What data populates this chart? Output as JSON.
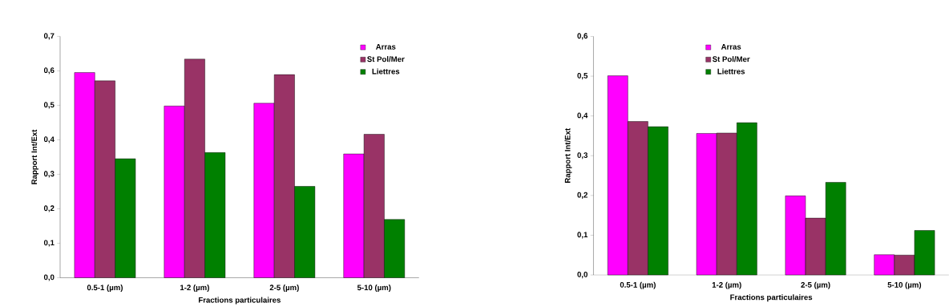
{
  "chart_data": [
    {
      "type": "bar",
      "xlabel": "Fractions particulaires",
      "ylabel": "Rapport Int/Ext",
      "categories": [
        "0.5-1 (µm)",
        "1-2 (µm)",
        "2-5 (µm)",
        "5-10 (µm)"
      ],
      "series": [
        {
          "name": "Arras",
          "color": "#ff00ff",
          "values": [
            0.595,
            0.498,
            0.506,
            0.359
          ]
        },
        {
          "name": "St Pol/Mer",
          "color": "#993366",
          "values": [
            0.571,
            0.634,
            0.589,
            0.416
          ]
        },
        {
          "name": "Liettres",
          "color": "#008000",
          "values": [
            0.345,
            0.363,
            0.265,
            0.169
          ]
        }
      ],
      "ylim": [
        0,
        0.7
      ],
      "yticks": [
        {
          "value": 0,
          "label": "0,0"
        },
        {
          "value": 0.1,
          "label": "0,1"
        },
        {
          "value": 0.2,
          "label": "0,2"
        },
        {
          "value": 0.3,
          "label": "0,3"
        },
        {
          "value": 0.4,
          "label": "0,4"
        },
        {
          "value": 0.5,
          "label": "0,5"
        },
        {
          "value": 0.6,
          "label": "0,6"
        },
        {
          "value": 0.7,
          "label": "0,7"
        }
      ],
      "legend": "top right"
    },
    {
      "type": "bar",
      "xlabel": "Fractions particulaires",
      "ylabel": "Rapport Int/Ext",
      "categories": [
        "0.5-1 (µm)",
        "1-2 (µm)",
        "2-5 (µm)",
        "5-10 (µm)"
      ],
      "series": [
        {
          "name": "Arras",
          "color": "#ff00ff",
          "values": [
            0.501,
            0.356,
            0.199,
            0.051
          ]
        },
        {
          "name": "St Pol/Mer",
          "color": "#993366",
          "values": [
            0.386,
            0.357,
            0.143,
            0.05
          ]
        },
        {
          "name": "Liettres",
          "color": "#008000",
          "values": [
            0.373,
            0.383,
            0.233,
            0.112
          ]
        }
      ],
      "ylim": [
        0,
        0.6
      ],
      "yticks": [
        {
          "value": 0,
          "label": "0,0"
        },
        {
          "value": 0.1,
          "label": "0,1"
        },
        {
          "value": 0.2,
          "label": "0,2"
        },
        {
          "value": 0.3,
          "label": "0,3"
        },
        {
          "value": 0.4,
          "label": "0,4"
        },
        {
          "value": 0.5,
          "label": "0,5"
        },
        {
          "value": 0.6,
          "label": "0,6"
        }
      ],
      "legend": "top left"
    }
  ]
}
